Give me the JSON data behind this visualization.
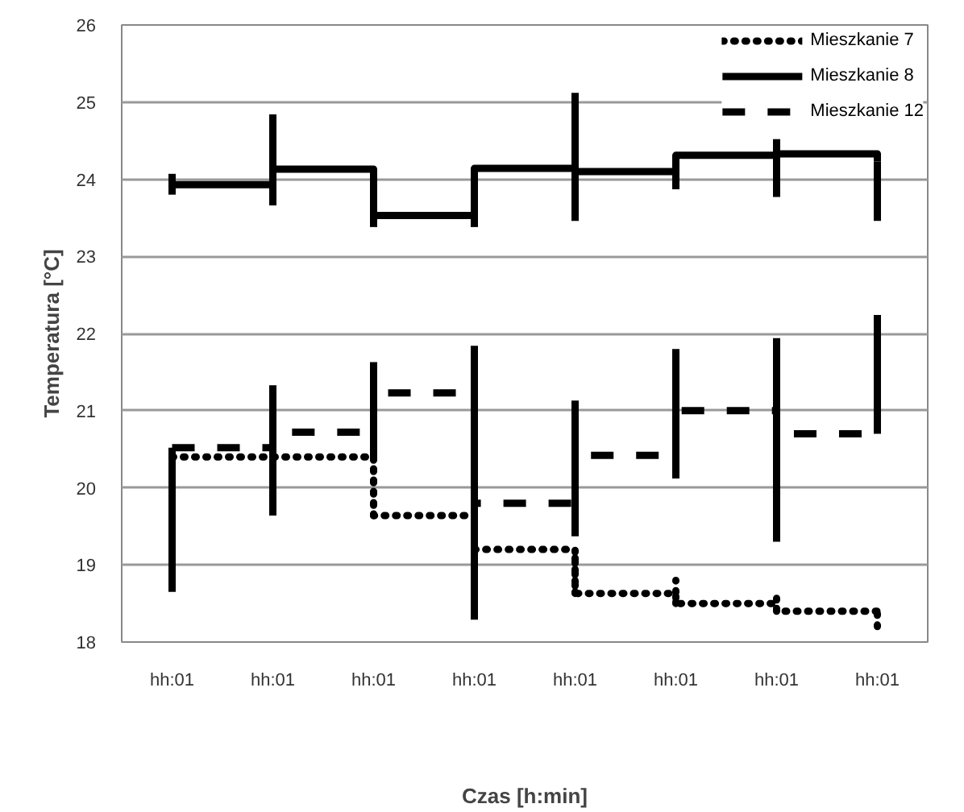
{
  "chart_data": {
    "type": "step",
    "xlabel": "Czas [h:min]",
    "ylabel": "Temperatura [°C]",
    "categories": [
      "hh:01",
      "hh:01",
      "hh:01",
      "hh:01",
      "hh:01",
      "hh:01",
      "hh:01",
      "hh:01"
    ],
    "ylim": [
      18,
      26
    ],
    "yticks": [
      18,
      19,
      20,
      21,
      22,
      23,
      24,
      25,
      26
    ],
    "grid": "y",
    "legend": "top right",
    "series": [
      {
        "name": "Mieszkanie 7",
        "color": "#000000",
        "line_style": "dotted",
        "values": [
          20.4,
          20.4,
          19.64,
          19.2,
          18.63,
          18.5,
          18.4,
          18.4
        ],
        "errors": [
          [
            20.4,
            20.52
          ],
          null,
          [
            19.64,
            20.4
          ],
          [
            19.2,
            19.54
          ],
          [
            18.63,
            19.14
          ],
          [
            18.5,
            18.8
          ],
          [
            18.4,
            18.65
          ],
          [
            18.2,
            18.45
          ]
        ]
      },
      {
        "name": "Mieszkanie 8",
        "color": "#000000",
        "line_style": "solid",
        "values": [
          23.93,
          24.13,
          23.53,
          24.14,
          24.1,
          24.31,
          24.33,
          24.23
        ],
        "errors": [
          [
            23.8,
            24.07
          ],
          [
            23.66,
            24.84
          ],
          [
            23.38,
            24.13
          ],
          [
            23.38,
            24.14
          ],
          [
            23.46,
            25.12
          ],
          [
            23.87,
            24.31
          ],
          [
            23.77,
            24.52
          ],
          [
            23.46,
            24.23
          ]
        ]
      },
      {
        "name": "Mieszkanie 12",
        "color": "#000000",
        "line_style": "dashed",
        "values": [
          20.52,
          20.72,
          21.23,
          19.8,
          20.42,
          21.0,
          20.7,
          20.82
        ],
        "errors": [
          [
            18.65,
            20.52
          ],
          [
            19.64,
            21.33
          ],
          [
            20.35,
            21.63
          ],
          [
            18.29,
            21.84
          ],
          [
            19.37,
            21.13
          ],
          [
            20.12,
            21.8
          ],
          [
            19.3,
            21.94
          ],
          [
            20.7,
            22.24
          ]
        ]
      }
    ]
  }
}
